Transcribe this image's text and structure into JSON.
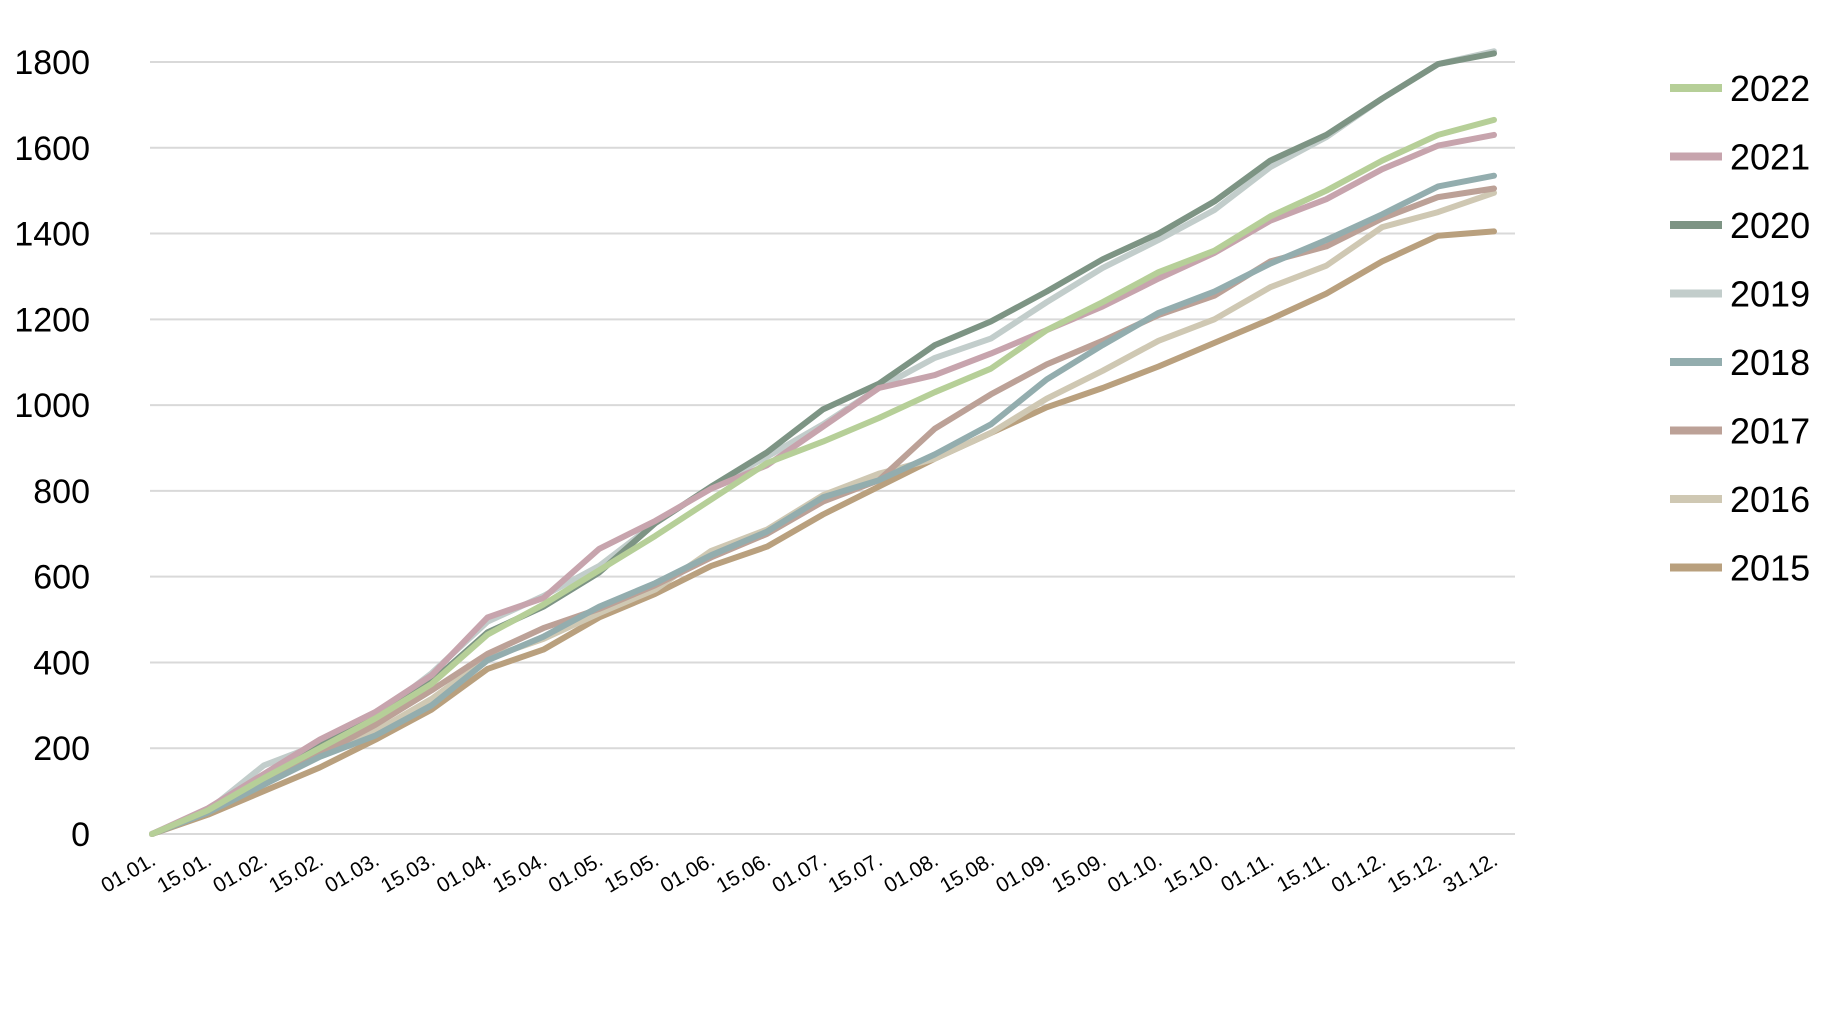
{
  "chart_data": {
    "type": "line",
    "title": "",
    "xlabel": "",
    "ylabel": "",
    "ylim": [
      0,
      1800
    ],
    "yticks": [
      "0",
      "200",
      "400",
      "600",
      "800",
      "1000",
      "1200",
      "1400",
      "1600",
      "1800"
    ],
    "grid": "horizontal",
    "legend_position": "right",
    "categories": [
      "01.01.",
      "15.01.",
      "01.02.",
      "15.02.",
      "01.03.",
      "15.03.",
      "01.04.",
      "15.04.",
      "01.05.",
      "15.05.",
      "01.06.",
      "15.06.",
      "01.07.",
      "15.07.",
      "01.08.",
      "15.08.",
      "01.09.",
      "15.09.",
      "01.10.",
      "15.10.",
      "01.11.",
      "15.11.",
      "01.12.",
      "15.12.",
      "31.12."
    ],
    "series": [
      {
        "name": "2015",
        "color": "#b9a07e",
        "values": [
          0,
          45,
          100,
          155,
          220,
          290,
          385,
          430,
          505,
          560,
          625,
          670,
          745,
          810,
          875,
          935,
          995,
          1040,
          1090,
          1145,
          1200,
          1260,
          1335,
          1395,
          1405
        ]
      },
      {
        "name": "2016",
        "color": "#cfc8b3",
        "values": [
          0,
          55,
          135,
          195,
          240,
          315,
          410,
          455,
          515,
          570,
          660,
          710,
          790,
          840,
          875,
          935,
          1015,
          1080,
          1150,
          1200,
          1275,
          1325,
          1415,
          1450,
          1495
        ]
      },
      {
        "name": "2017",
        "color": "#bca197",
        "values": [
          0,
          55,
          125,
          185,
          255,
          335,
          420,
          480,
          525,
          580,
          645,
          700,
          775,
          825,
          945,
          1025,
          1095,
          1150,
          1210,
          1255,
          1335,
          1370,
          1435,
          1485,
          1505
        ]
      },
      {
        "name": "2018",
        "color": "#93adae",
        "values": [
          0,
          50,
          115,
          180,
          230,
          300,
          405,
          460,
          530,
          585,
          650,
          705,
          785,
          825,
          885,
          955,
          1060,
          1140,
          1215,
          1265,
          1330,
          1385,
          1445,
          1510,
          1535
        ]
      },
      {
        "name": "2019",
        "color": "#c2cdcb",
        "values": [
          0,
          55,
          160,
          210,
          275,
          375,
          495,
          555,
          625,
          725,
          810,
          880,
          955,
          1040,
          1110,
          1155,
          1240,
          1320,
          1385,
          1455,
          1555,
          1625,
          1715,
          1795,
          1825
        ]
      },
      {
        "name": "2020",
        "color": "#7d9484",
        "values": [
          0,
          55,
          135,
          205,
          275,
          355,
          470,
          530,
          610,
          725,
          810,
          890,
          990,
          1050,
          1140,
          1195,
          1265,
          1340,
          1400,
          1475,
          1570,
          1630,
          1715,
          1795,
          1820
        ]
      },
      {
        "name": "2021",
        "color": "#c7a4ad",
        "values": [
          0,
          60,
          140,
          220,
          285,
          370,
          505,
          550,
          665,
          730,
          805,
          860,
          950,
          1040,
          1070,
          1120,
          1175,
          1230,
          1295,
          1355,
          1430,
          1480,
          1550,
          1605,
          1630
        ]
      },
      {
        "name": "2022",
        "color": "#b6cf98",
        "values": [
          0,
          55,
          130,
          200,
          270,
          350,
          465,
          535,
          615,
          695,
          780,
          865,
          915,
          970,
          1030,
          1085,
          1175,
          1240,
          1310,
          1360,
          1440,
          1500,
          1570,
          1630,
          1665
        ]
      }
    ],
    "legend": [
      {
        "label": "2022",
        "color": "#b6cf98"
      },
      {
        "label": "2021",
        "color": "#c7a4ad"
      },
      {
        "label": "2020",
        "color": "#7d9484"
      },
      {
        "label": "2019",
        "color": "#c2cdcb"
      },
      {
        "label": "2018",
        "color": "#93adae"
      },
      {
        "label": "2017",
        "color": "#bca197"
      },
      {
        "label": "2016",
        "color": "#cfc8b3"
      },
      {
        "label": "2015",
        "color": "#b9a07e"
      }
    ]
  }
}
